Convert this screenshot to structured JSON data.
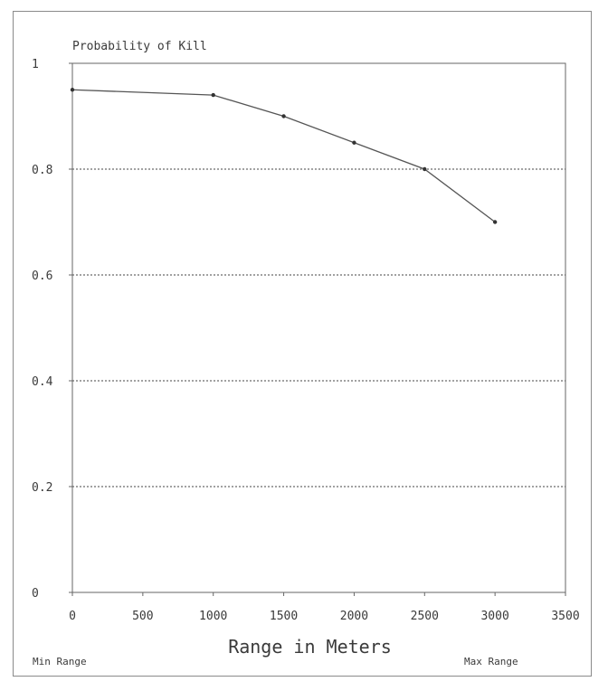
{
  "chart_data": {
    "type": "line",
    "title": "Probability of Kill",
    "xlabel": "Range in Meters",
    "ylabel": "",
    "xlim": [
      0,
      3500
    ],
    "ylim": [
      0,
      1
    ],
    "xticks": [
      0,
      500,
      1000,
      1500,
      2000,
      2500,
      3000,
      3500
    ],
    "yticks": [
      0,
      0.2,
      0.4,
      0.6,
      0.8,
      1
    ],
    "ytick_labels": [
      "0",
      "0.2",
      "0.4",
      "0.6",
      "0.8",
      "1"
    ],
    "grid": "horizontal dotted",
    "series": [
      {
        "x": [
          0,
          1000,
          1500,
          2000,
          2500,
          3000
        ],
        "y": [
          0.95,
          0.94,
          0.9,
          0.85,
          0.8,
          0.7
        ]
      }
    ],
    "footer": {
      "left": "Min Range",
      "right": "Max Range"
    }
  },
  "colors": {
    "line": "#555555",
    "grid": "#444444",
    "axis": "#666666",
    "text": "#3a3a3a"
  }
}
